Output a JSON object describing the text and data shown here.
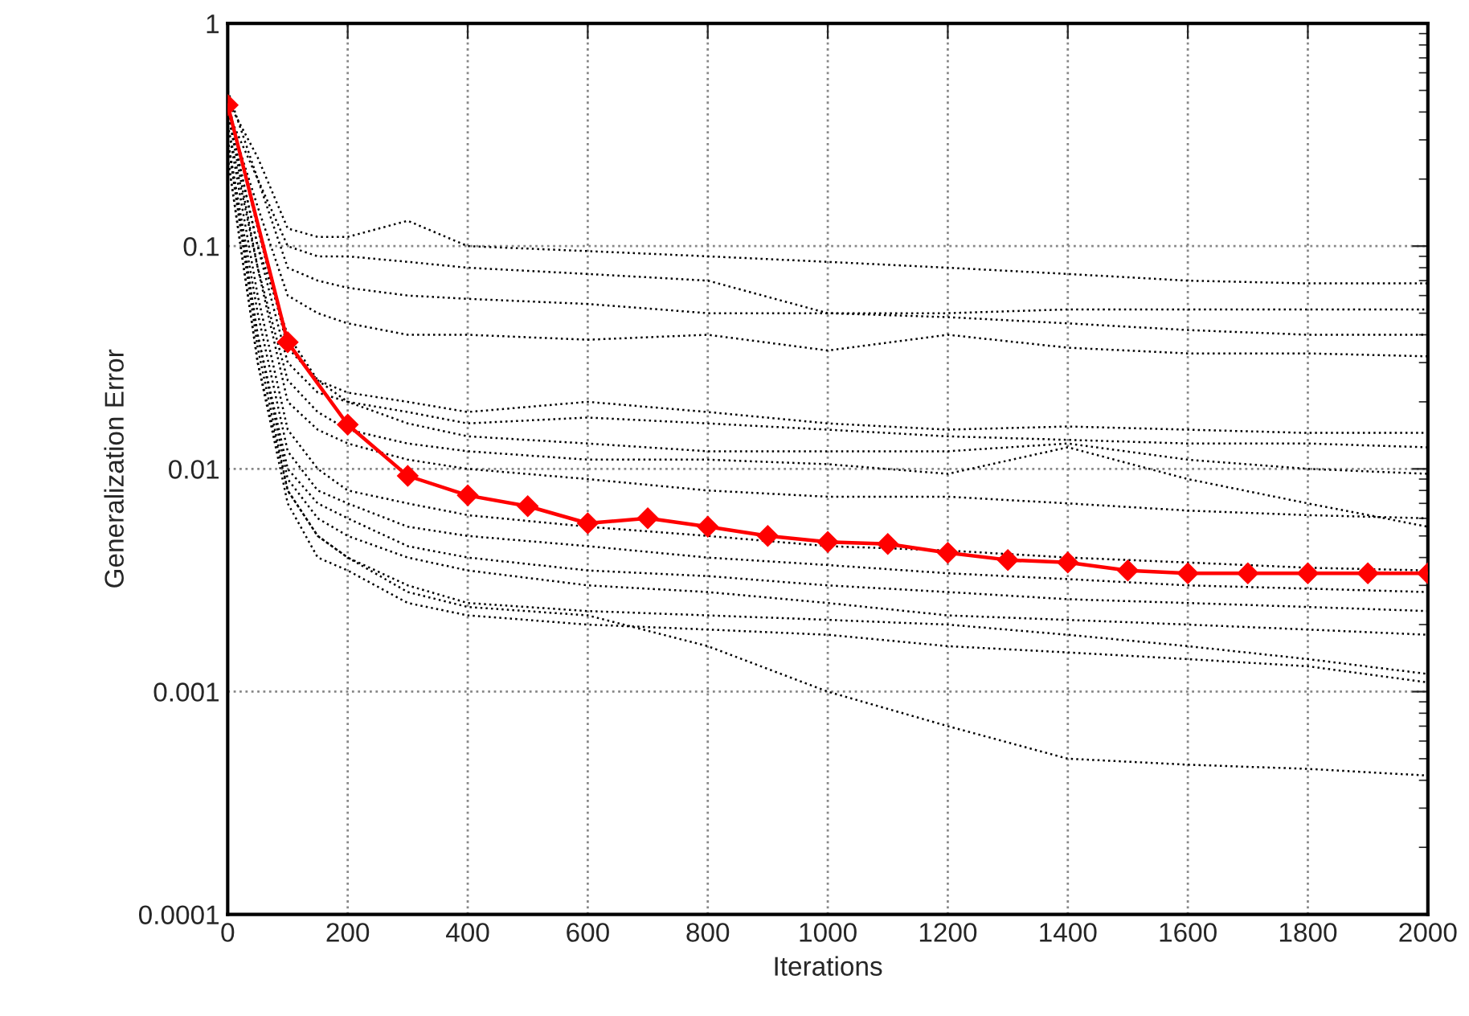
{
  "chart_data": {
    "type": "line",
    "xlabel": "Iterations",
    "ylabel": "Generalization Error",
    "log": "y",
    "grid": true,
    "legend": false,
    "xlim": [
      0,
      2000
    ],
    "xticks": [
      0,
      200,
      400,
      600,
      800,
      1000,
      1200,
      1400,
      1600,
      1800,
      2000
    ],
    "ylim": [
      0.0001,
      1
    ],
    "yticks": [
      {
        "value": 0.0001,
        "label": "0.0001"
      },
      {
        "value": 0.001,
        "label": "0.001"
      },
      {
        "value": 0.01,
        "label": "0.01"
      },
      {
        "value": 0.1,
        "label": "0.1"
      },
      {
        "value": 1,
        "label": "1"
      }
    ],
    "x": [
      0,
      50,
      100,
      150,
      200,
      300,
      400,
      600,
      800,
      1000,
      1200,
      1400,
      1600,
      1800,
      2000
    ],
    "series": [
      {
        "color": "#000000",
        "line_style": "dotted",
        "values": [
          0.45,
          0.25,
          0.12,
          0.11,
          0.11,
          0.13,
          0.1,
          0.095,
          0.09,
          0.085,
          0.08,
          0.075,
          0.07,
          0.068,
          0.068
        ]
      },
      {
        "color": "#000000",
        "line_style": "dotted",
        "values": [
          0.4,
          0.2,
          0.1,
          0.09,
          0.09,
          0.085,
          0.08,
          0.075,
          0.07,
          0.05,
          0.05,
          0.052,
          0.052,
          0.052,
          0.052
        ]
      },
      {
        "color": "#000000",
        "line_style": "dotted",
        "values": [
          0.5,
          0.2,
          0.08,
          0.07,
          0.065,
          0.06,
          0.058,
          0.055,
          0.05,
          0.05,
          0.048,
          0.045,
          0.042,
          0.04,
          0.04
        ]
      },
      {
        "color": "#000000",
        "line_style": "dotted",
        "values": [
          0.4,
          0.15,
          0.06,
          0.05,
          0.045,
          0.04,
          0.04,
          0.038,
          0.04,
          0.034,
          0.04,
          0.035,
          0.033,
          0.033,
          0.032
        ]
      },
      {
        "color": "#000000",
        "line_style": "dotted",
        "values": [
          0.4,
          0.1,
          0.04,
          0.025,
          0.022,
          0.02,
          0.018,
          0.02,
          0.018,
          0.016,
          0.015,
          0.0155,
          0.015,
          0.0145,
          0.0145
        ]
      },
      {
        "color": "#000000",
        "line_style": "dotted",
        "values": [
          0.45,
          0.12,
          0.035,
          0.025,
          0.02,
          0.018,
          0.016,
          0.017,
          0.016,
          0.015,
          0.014,
          0.0135,
          0.013,
          0.013,
          0.0125
        ]
      },
      {
        "color": "#000000",
        "line_style": "dotted",
        "values": [
          0.4,
          0.1,
          0.03,
          0.022,
          0.02,
          0.016,
          0.014,
          0.013,
          0.012,
          0.012,
          0.012,
          0.013,
          0.011,
          0.01,
          0.0095
        ]
      },
      {
        "color": "#000000",
        "line_style": "dotted",
        "values": [
          0.35,
          0.08,
          0.025,
          0.018,
          0.015,
          0.013,
          0.012,
          0.011,
          0.011,
          0.0105,
          0.0095,
          0.0125,
          0.009,
          0.007,
          0.0055
        ]
      },
      {
        "color": "#000000",
        "line_style": "dotted",
        "values": [
          0.4,
          0.08,
          0.02,
          0.015,
          0.013,
          0.011,
          0.01,
          0.009,
          0.008,
          0.0075,
          0.0075,
          0.007,
          0.0065,
          0.0062,
          0.006
        ]
      },
      {
        "color": "#000000",
        "line_style": "dotted",
        "values": [
          0.35,
          0.06,
          0.015,
          0.01,
          0.008,
          0.007,
          0.0062,
          0.0055,
          0.005,
          0.0045,
          0.0043,
          0.004,
          0.0038,
          0.0036,
          0.0035
        ]
      },
      {
        "color": "#000000",
        "line_style": "dotted",
        "values": [
          0.3,
          0.05,
          0.012,
          0.008,
          0.007,
          0.0055,
          0.005,
          0.0045,
          0.004,
          0.0037,
          0.0034,
          0.0032,
          0.003,
          0.0029,
          0.0028
        ]
      },
      {
        "color": "#000000",
        "line_style": "dotted",
        "values": [
          0.3,
          0.04,
          0.01,
          0.007,
          0.006,
          0.0045,
          0.004,
          0.0035,
          0.0033,
          0.003,
          0.0028,
          0.0026,
          0.0025,
          0.0024,
          0.0023
        ]
      },
      {
        "color": "#000000",
        "line_style": "dotted",
        "values": [
          0.3,
          0.04,
          0.009,
          0.006,
          0.005,
          0.004,
          0.0035,
          0.003,
          0.0028,
          0.0025,
          0.0022,
          0.0021,
          0.002,
          0.0019,
          0.0018
        ]
      },
      {
        "color": "#000000",
        "line_style": "dotted",
        "values": [
          0.25,
          0.03,
          0.008,
          0.005,
          0.004,
          0.003,
          0.0025,
          0.0023,
          0.0022,
          0.0021,
          0.002,
          0.0018,
          0.0016,
          0.0014,
          0.0012
        ]
      },
      {
        "color": "#000000",
        "line_style": "dotted",
        "values": [
          0.25,
          0.03,
          0.007,
          0.004,
          0.0035,
          0.0025,
          0.0022,
          0.002,
          0.0019,
          0.0018,
          0.0016,
          0.0015,
          0.0014,
          0.0013,
          0.0011
        ]
      },
      {
        "color": "#000000",
        "line_style": "dotted",
        "values": [
          0.3,
          0.035,
          0.008,
          0.005,
          0.004,
          0.0028,
          0.0024,
          0.0022,
          0.0016,
          0.001,
          0.0007,
          0.0005,
          0.00047,
          0.00045,
          0.00042
        ]
      },
      {
        "color": "#ff0000",
        "line_style": "solid",
        "marker": "diamond",
        "x": [
          0,
          100,
          200,
          300,
          400,
          500,
          600,
          700,
          800,
          900,
          1000,
          1100,
          1200,
          1300,
          1400,
          1500,
          1600,
          1700,
          1800,
          1900,
          2000
        ],
        "values": [
          0.43,
          0.037,
          0.0158,
          0.0093,
          0.0076,
          0.0068,
          0.0057,
          0.006,
          0.0055,
          0.005,
          0.0047,
          0.0046,
          0.0042,
          0.0039,
          0.0038,
          0.0035,
          0.0034,
          0.0034,
          0.0034,
          0.0034,
          0.0034
        ]
      }
    ]
  }
}
